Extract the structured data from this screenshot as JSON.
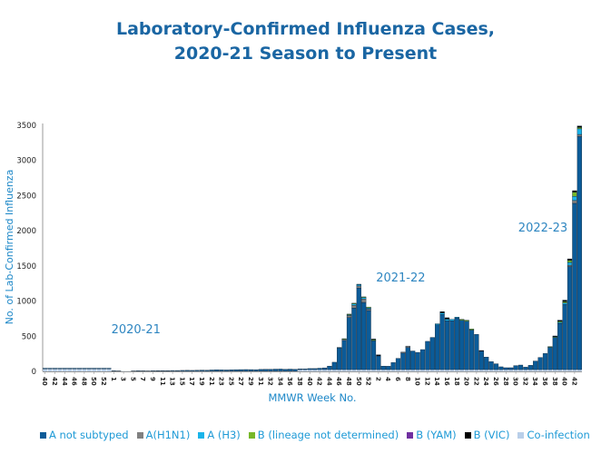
{
  "chart_data": {
    "type": "bar",
    "stacked": true,
    "title": "Laboratory-Confirmed Influenza Cases,",
    "subtitle": "2020-21 Season to Present",
    "xlabel": "MMWR Week No.",
    "ylabel": "No. of Lab-Confirmed Influenza",
    "ylim": [
      0,
      3500
    ],
    "yticks": [
      "0",
      "500",
      "1000",
      "1500",
      "2000",
      "2500",
      "3000",
      "3500"
    ],
    "xtick_labels": [
      "40",
      "42",
      "44",
      "46",
      "48",
      "50",
      "52",
      "1",
      "3",
      "5",
      "7",
      "9",
      "11",
      "13",
      "15",
      "17",
      "19",
      "21",
      "23",
      "25",
      "27",
      "29",
      "31",
      "32",
      "34",
      "36",
      "38",
      "40",
      "42",
      "44",
      "46",
      "48",
      "50",
      "52",
      "2",
      "4",
      "6",
      "8",
      "10",
      "12",
      "14",
      "16",
      "18",
      "20",
      "22",
      "24",
      "26",
      "28",
      "30",
      "32",
      "34",
      "36",
      "38",
      "40",
      "42"
    ],
    "annotations": [
      {
        "text": "2020-21",
        "x_bar": 14
      },
      {
        "text": "2021-22",
        "x_bar": 68
      },
      {
        "text": "2022-23",
        "x_bar": 97
      }
    ],
    "grid": false,
    "legend_position": "bottom",
    "series": [
      {
        "name": "A not subtyped",
        "color": "#0b5b98",
        "values": [
          10,
          10,
          10,
          10,
          10,
          10,
          10,
          10,
          10,
          10,
          10,
          10,
          10,
          10,
          3,
          1,
          0,
          0,
          1,
          3,
          2,
          1,
          3,
          4,
          5,
          5,
          7,
          7,
          9,
          10,
          9,
          11,
          13,
          12,
          15,
          17,
          16,
          15,
          17,
          19,
          20,
          21,
          20,
          19,
          23,
          25,
          25,
          27,
          28,
          25,
          27,
          25,
          10,
          10,
          15,
          15,
          20,
          25,
          50,
          105,
          310,
          415,
          740,
          875,
          1160,
          955,
          840,
          410,
          195,
          50,
          48,
          100,
          160,
          235,
          315,
          265,
          245,
          285,
          402,
          458,
          637,
          785,
          693,
          696,
          736,
          701,
          688,
          563,
          501,
          262,
          178,
          113,
          83,
          40,
          27,
          27,
          57,
          65,
          35,
          61,
          122,
          173,
          229,
          318,
          459,
          658,
          928,
          1465,
          2365,
          3315
        ]
      },
      {
        "name": "A(H1N1)",
        "color": "#808080",
        "values": [
          0,
          0,
          0,
          0,
          0,
          0,
          0,
          0,
          0,
          0,
          0,
          0,
          0,
          0,
          0,
          0,
          0,
          0,
          0,
          0,
          0,
          0,
          0,
          0,
          0,
          0,
          0,
          0,
          0,
          0,
          0,
          0,
          0,
          0,
          0,
          0,
          0,
          0,
          0,
          0,
          0,
          0,
          0,
          0,
          0,
          0,
          0,
          0,
          0,
          0,
          0,
          0,
          0,
          0,
          0,
          0,
          0,
          0,
          0,
          0,
          0,
          15,
          30,
          40,
          30,
          50,
          20,
          0,
          0,
          0,
          0,
          0,
          0,
          15,
          20,
          0,
          0,
          0,
          0,
          0,
          0,
          0,
          0,
          0,
          0,
          0,
          0,
          0,
          0,
          0,
          0,
          0,
          0,
          0,
          0,
          0,
          0,
          0,
          0,
          0,
          0,
          0,
          0,
          0,
          0,
          0,
          0,
          20,
          40,
          30
        ]
      },
      {
        "name": "A (H3)",
        "color": "#19b4ea",
        "values": [
          0,
          0,
          0,
          0,
          0,
          0,
          0,
          0,
          0,
          0,
          0,
          0,
          0,
          0,
          0,
          0,
          0,
          0,
          0,
          0,
          0,
          0,
          0,
          0,
          0,
          0,
          0,
          0,
          0,
          0,
          0,
          0,
          0,
          0,
          0,
          0,
          0,
          0,
          0,
          0,
          0,
          0,
          0,
          0,
          0,
          0,
          0,
          0,
          0,
          0,
          0,
          0,
          0,
          0,
          0,
          0,
          0,
          0,
          0,
          0,
          0,
          0,
          10,
          20,
          20,
          20,
          15,
          0,
          0,
          0,
          0,
          0,
          0,
          0,
          0,
          0,
          0,
          0,
          0,
          0,
          15,
          20,
          25,
          20,
          10,
          0,
          0,
          0,
          0,
          0,
          0,
          0,
          0,
          0,
          0,
          0,
          0,
          0,
          0,
          0,
          0,
          0,
          0,
          0,
          0,
          15,
          20,
          40,
          60,
          80
        ]
      },
      {
        "name": "B (lineage not determined)",
        "color": "#76b82a",
        "values": [
          0,
          0,
          0,
          0,
          0,
          0,
          0,
          0,
          0,
          0,
          0,
          0,
          0,
          0,
          0,
          0,
          0,
          0,
          0,
          0,
          0,
          0,
          0,
          0,
          0,
          0,
          0,
          0,
          0,
          0,
          0,
          0,
          0,
          0,
          0,
          0,
          0,
          0,
          0,
          0,
          0,
          0,
          0,
          0,
          0,
          0,
          0,
          0,
          0,
          0,
          0,
          0,
          0,
          0,
          0,
          0,
          0,
          0,
          0,
          0,
          5,
          10,
          10,
          10,
          5,
          10,
          15,
          15,
          0,
          0,
          0,
          0,
          0,
          0,
          0,
          0,
          0,
          0,
          0,
          0,
          0,
          0,
          0,
          0,
          0,
          15,
          15,
          15,
          0,
          0,
          0,
          0,
          0,
          0,
          0,
          0,
          0,
          0,
          0,
          0,
          0,
          0,
          0,
          10,
          10,
          15,
          20,
          30,
          60,
          20
        ]
      },
      {
        "name": "B (YAM)",
        "color": "#7030a0",
        "values": [
          0,
          0,
          0,
          0,
          0,
          0,
          0,
          0,
          0,
          0,
          0,
          0,
          0,
          0,
          0,
          0,
          0,
          0,
          0,
          0,
          0,
          0,
          0,
          0,
          0,
          0,
          0,
          0,
          0,
          0,
          0,
          0,
          0,
          0,
          0,
          0,
          0,
          0,
          0,
          0,
          0,
          0,
          0,
          0,
          0,
          0,
          0,
          0,
          0,
          0,
          0,
          0,
          0,
          0,
          0,
          0,
          0,
          0,
          0,
          0,
          0,
          0,
          0,
          0,
          0,
          0,
          0,
          0,
          0,
          0,
          0,
          0,
          0,
          0,
          0,
          0,
          0,
          0,
          0,
          0,
          0,
          0,
          0,
          0,
          0,
          0,
          0,
          0,
          0,
          0,
          0,
          0,
          0,
          0,
          0,
          0,
          0,
          0,
          0,
          0,
          0,
          0,
          0,
          0,
          0,
          0,
          0,
          0,
          0,
          0
        ]
      },
      {
        "name": "B (VIC)",
        "color": "#000000",
        "values": [
          0,
          0,
          0,
          0,
          0,
          0,
          0,
          0,
          0,
          0,
          0,
          0,
          0,
          0,
          0,
          0,
          0,
          0,
          0,
          0,
          0,
          0,
          0,
          0,
          0,
          0,
          0,
          0,
          0,
          0,
          0,
          0,
          0,
          0,
          0,
          0,
          0,
          0,
          0,
          0,
          0,
          0,
          0,
          0,
          0,
          0,
          0,
          0,
          0,
          0,
          0,
          0,
          0,
          0,
          0,
          0,
          0,
          0,
          0,
          0,
          0,
          0,
          0,
          0,
          0,
          0,
          0,
          10,
          15,
          0,
          0,
          0,
          0,
          0,
          0,
          0,
          0,
          0,
          0,
          0,
          0,
          20,
          20,
          0,
          0,
          0,
          0,
          0,
          0,
          10,
          0,
          0,
          0,
          0,
          0,
          0,
          0,
          0,
          0,
          0,
          0,
          0,
          0,
          0,
          10,
          15,
          20,
          20,
          20,
          20
        ]
      },
      {
        "name": "Co-infection",
        "color": "#b9cfe9",
        "values": [
          35,
          35,
          35,
          35,
          35,
          35,
          35,
          35,
          35,
          35,
          35,
          35,
          35,
          35,
          5,
          5,
          5,
          5,
          5,
          5,
          5,
          5,
          5,
          5,
          5,
          5,
          5,
          5,
          5,
          5,
          5,
          5,
          5,
          5,
          5,
          5,
          5,
          5,
          5,
          5,
          5,
          5,
          5,
          5,
          5,
          5,
          5,
          5,
          5,
          5,
          5,
          5,
          25,
          25,
          25,
          25,
          25,
          25,
          25,
          25,
          25,
          25,
          25,
          25,
          25,
          25,
          25,
          25,
          25,
          25,
          25,
          25,
          25,
          25,
          25,
          25,
          25,
          25,
          25,
          25,
          25,
          25,
          25,
          25,
          25,
          25,
          25,
          25,
          25,
          25,
          25,
          25,
          25,
          25,
          25,
          25,
          25,
          25,
          25,
          25,
          25,
          25,
          25,
          25,
          25,
          25,
          25,
          25,
          25,
          25
        ]
      }
    ]
  }
}
